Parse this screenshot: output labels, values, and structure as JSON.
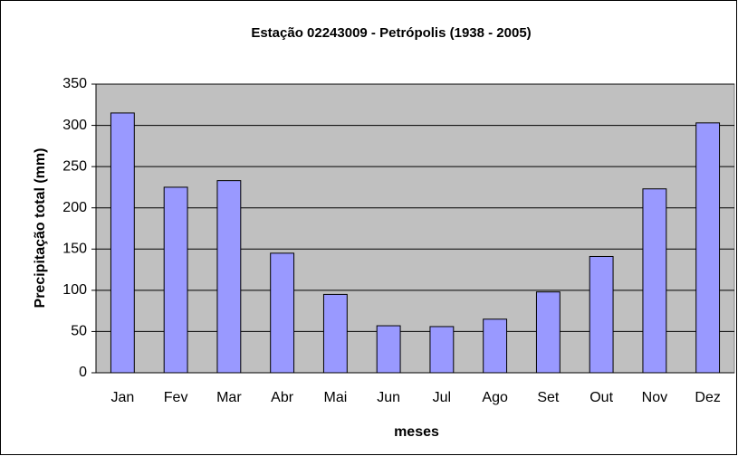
{
  "chart_data": {
    "type": "bar",
    "title": "Estação 02243009 - Petrópolis (1938 - 2005)",
    "x_label": "meses",
    "y_label": "Precipitação total (mm)",
    "categories": [
      "Jan",
      "Fev",
      "Mar",
      "Abr",
      "Mai",
      "Jun",
      "Jul",
      "Ago",
      "Set",
      "Out",
      "Nov",
      "Dez"
    ],
    "values": [
      315,
      225,
      233,
      145,
      95,
      57,
      56,
      65,
      98,
      141,
      223,
      303
    ],
    "color": "#9999ff",
    "ylim": [
      0,
      350
    ],
    "yticks": [
      0,
      50,
      100,
      150,
      200,
      250,
      300,
      350
    ],
    "grid": true
  }
}
